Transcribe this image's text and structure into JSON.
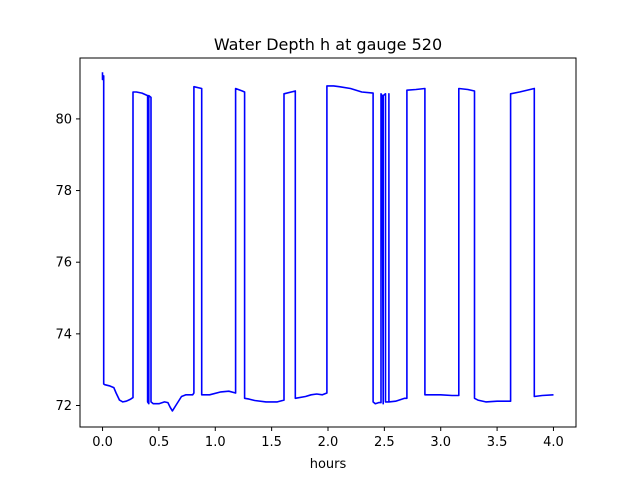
{
  "chart_data": {
    "type": "line",
    "title": "Water Depth h at gauge 520",
    "xlabel": "hours",
    "ylabel": "",
    "xlim": [
      -0.2,
      4.2
    ],
    "ylim": [
      71.4,
      81.7
    ],
    "xticks": [
      0.0,
      0.5,
      1.0,
      1.5,
      2.0,
      2.5,
      3.0,
      3.5,
      4.0
    ],
    "xtick_labels": [
      "0.0",
      "0.5",
      "1.0",
      "1.5",
      "2.0",
      "2.5",
      "3.0",
      "3.5",
      "4.0"
    ],
    "yticks": [
      72,
      74,
      76,
      78,
      80
    ],
    "ytick_labels": [
      "72",
      "74",
      "76",
      "78",
      "80"
    ],
    "grid": false,
    "series": [
      {
        "color": "#0000ff",
        "x": [
          0.0,
          0.0,
          0.01,
          0.01,
          0.02,
          0.06,
          0.1,
          0.12,
          0.15,
          0.18,
          0.21,
          0.25,
          0.27,
          0.27,
          0.3,
          0.35,
          0.4,
          0.4,
          0.41,
          0.41,
          0.43,
          0.43,
          0.45,
          0.5,
          0.55,
          0.58,
          0.6,
          0.62,
          0.65,
          0.7,
          0.74,
          0.8,
          0.81,
          0.81,
          0.88,
          0.88,
          0.95,
          1.05,
          1.12,
          1.18,
          1.18,
          1.24,
          1.26,
          1.26,
          1.3,
          1.35,
          1.45,
          1.55,
          1.61,
          1.61,
          1.71,
          1.71,
          1.8,
          1.85,
          1.9,
          1.95,
          1.99,
          1.99,
          2.05,
          2.1,
          2.2,
          2.3,
          2.4,
          2.4,
          2.42,
          2.45,
          2.47,
          2.47,
          2.48,
          2.49,
          2.49,
          2.51,
          2.51,
          2.54,
          2.54,
          2.54,
          2.6,
          2.68,
          2.7,
          2.7,
          2.78,
          2.86,
          2.86,
          3.0,
          3.1,
          3.16,
          3.16,
          3.24,
          3.3,
          3.3,
          3.33,
          3.4,
          3.5,
          3.62,
          3.62,
          3.7,
          3.83,
          3.83,
          3.9,
          4.0
        ],
        "y": [
          81.3,
          81.1,
          81.2,
          72.6,
          72.58,
          72.55,
          72.5,
          72.35,
          72.15,
          72.1,
          72.12,
          72.18,
          72.22,
          80.75,
          80.75,
          80.72,
          80.65,
          72.1,
          72.05,
          80.65,
          80.6,
          72.1,
          72.05,
          72.05,
          72.1,
          72.08,
          71.95,
          71.85,
          72.0,
          72.25,
          72.3,
          72.3,
          72.35,
          80.9,
          80.85,
          72.3,
          72.3,
          72.38,
          72.4,
          72.35,
          80.85,
          80.78,
          80.75,
          72.2,
          72.18,
          72.14,
          72.1,
          72.1,
          72.15,
          80.7,
          80.78,
          72.2,
          72.25,
          72.3,
          72.32,
          72.3,
          72.35,
          80.92,
          80.92,
          80.9,
          80.85,
          80.75,
          80.72,
          72.1,
          72.05,
          72.08,
          72.08,
          80.7,
          80.65,
          72.05,
          80.65,
          80.7,
          72.1,
          72.1,
          80.7,
          72.1,
          72.12,
          72.2,
          72.2,
          80.8,
          80.82,
          80.85,
          72.3,
          72.3,
          72.28,
          72.28,
          80.85,
          80.82,
          80.78,
          72.2,
          72.15,
          72.1,
          72.12,
          72.12,
          80.7,
          80.75,
          80.85,
          72.25,
          72.28,
          72.3
        ]
      }
    ]
  }
}
